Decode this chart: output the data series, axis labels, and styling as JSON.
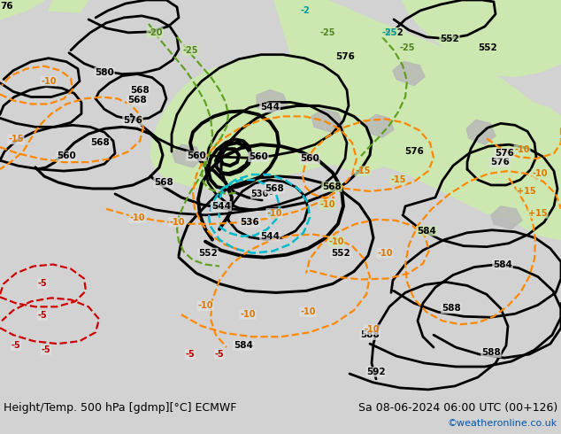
{
  "title_left": "Height/Temp. 500 hPa [gdmp][°C] ECMWF",
  "title_right": "Sa 08-06-2024 06:00 UTC (00+126)",
  "credit": "©weatheronline.co.uk",
  "fig_width": 6.34,
  "fig_height": 4.9,
  "dpi": 100,
  "bg_color": "#d2d2d2",
  "green_color": "#c8e8b0",
  "title_fontsize": 9,
  "credit_fontsize": 8,
  "credit_color": "#0055aa",
  "bottom_label_color": "#000000"
}
